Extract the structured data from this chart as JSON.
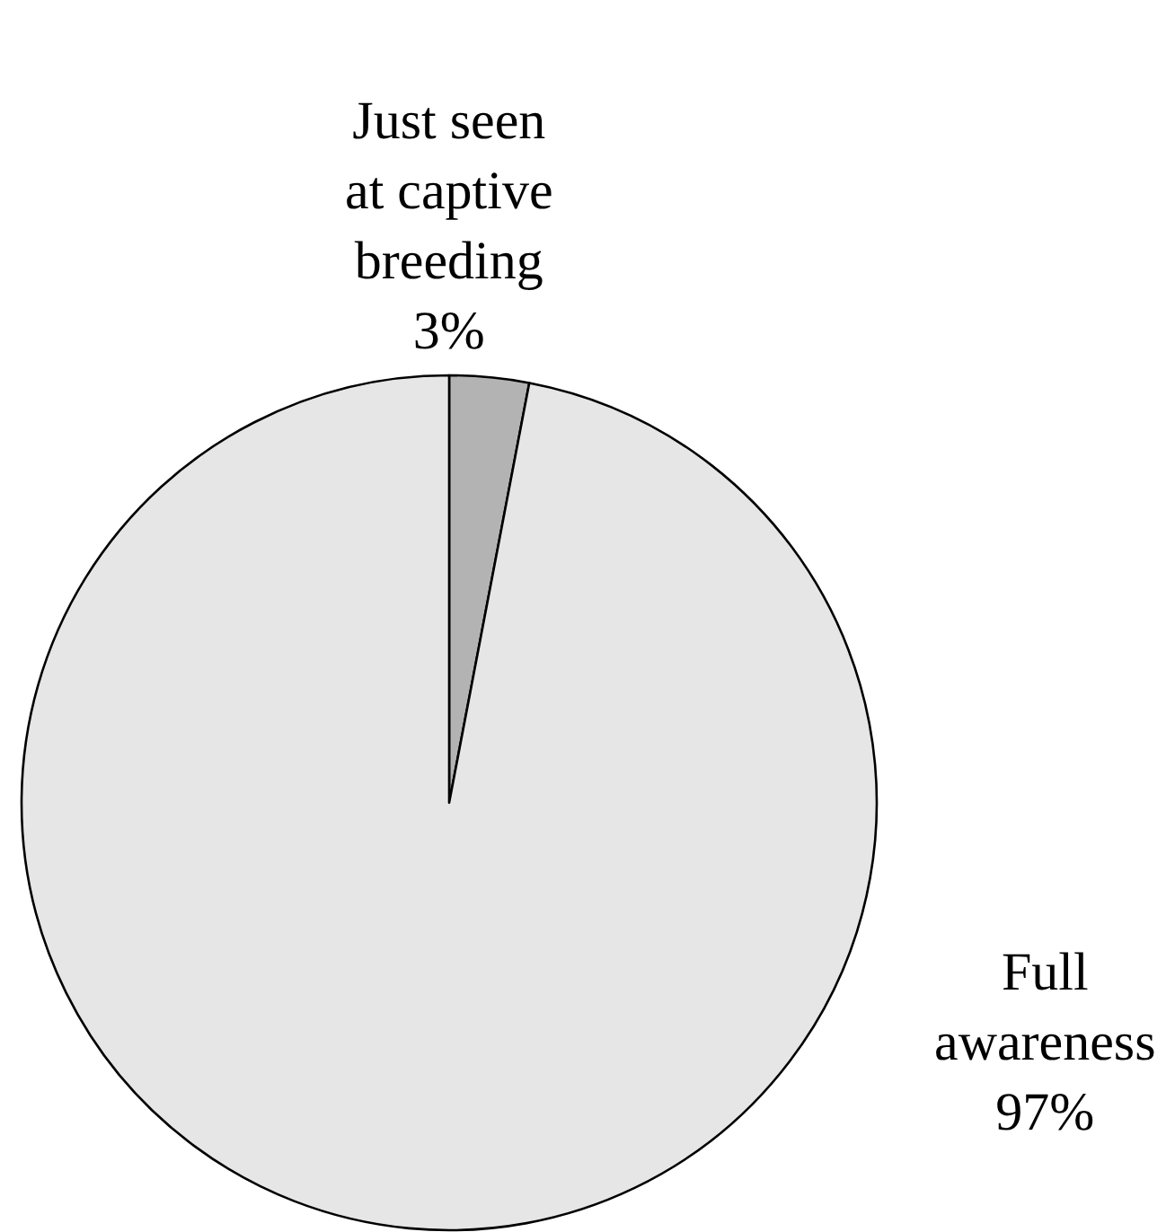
{
  "chart_data": {
    "type": "pie",
    "categories": [
      "Just seen at captive breeding",
      "Full awareness"
    ],
    "values": [
      3,
      97
    ],
    "value_labels": [
      "3%",
      "97%"
    ],
    "colors": [
      "#b3b3b3",
      "#e6e6e6"
    ],
    "legend": false
  }
}
